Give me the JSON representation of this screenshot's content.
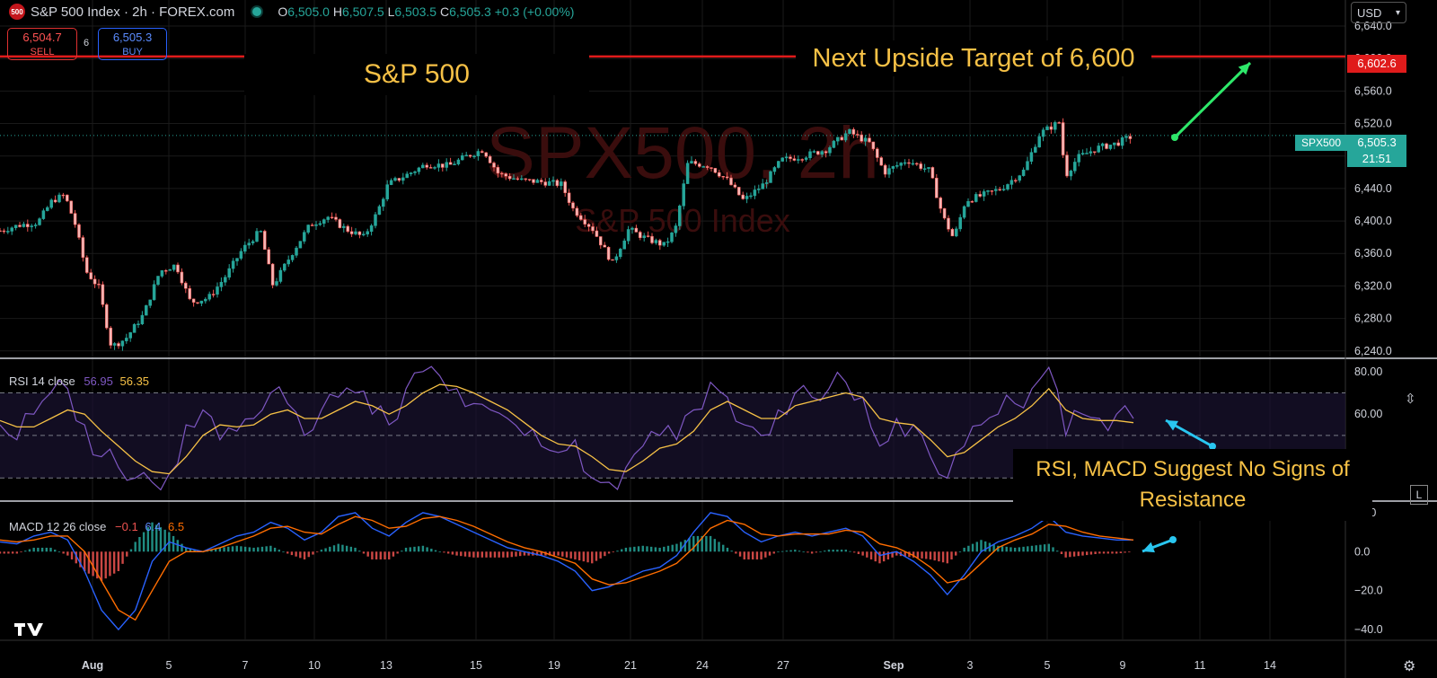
{
  "header": {
    "logo_text": "500",
    "title": "S&P 500 Index · 2h · FOREX.com",
    "ohlc": {
      "o_label": "O",
      "o": "6,505.0",
      "h_label": "H",
      "h": "6,507.5",
      "l_label": "L",
      "l": "6,503.5",
      "c_label": "C",
      "c": "6,505.3",
      "change": "+0.3 (+0.00%)"
    }
  },
  "trade": {
    "sell_price": "6,504.7",
    "sell_label": "SELL",
    "spread": "6",
    "buy_price": "6,505.3",
    "buy_label": "BUY"
  },
  "currency": "USD",
  "watermark": {
    "symbol": "SPX500, 2h",
    "name": "S&P 500 Index"
  },
  "annotations": {
    "title": "S&P 500",
    "target": "Next Upside Target of 6,600",
    "rsi_macd": "RSI, MACD Suggest No Signs of Resistance"
  },
  "price_labels": {
    "target_value": "6,602.6",
    "symbol": "SPX500",
    "last_price": "6,505.3",
    "countdown": "21:51"
  },
  "rsi_legend": {
    "label": "RSI 14 close",
    "rsi": "56.95",
    "ma": "56.35"
  },
  "macd_legend": {
    "label": "MACD 12 26 close",
    "hist": "−0.1",
    "macd": "6.4",
    "signal": "6.5"
  },
  "colors": {
    "up": "#26a69a",
    "down": "#ef5350",
    "rsi": "#7e57c2",
    "rsi_ma": "#f6c146",
    "macd": "#2962ff",
    "signal": "#ff6d00",
    "target_line": "#e01b1b",
    "annotation": "#f6c146"
  },
  "chart_data": [
    {
      "type": "candlestick",
      "title": "S&P 500 Index · 2h · FOREX.com",
      "x_ticks": [
        "Aug",
        "5",
        "7",
        "10",
        "13",
        "15",
        "19",
        "21",
        "24",
        "27",
        "Sep",
        "3",
        "5",
        "9",
        "11",
        "14"
      ],
      "y_ticks": [
        "6,640.0",
        "6,600.0",
        "6,560.0",
        "6,520.0",
        "6,480.0",
        "6,440.0",
        "6,400.0",
        "6,360.0",
        "6,320.0",
        "6,280.0",
        "6,240.0"
      ],
      "ylim": [
        6232,
        6650
      ],
      "close_path": [
        {
          "t": 0,
          "v": 6388
        },
        {
          "t": 22,
          "v": 6395
        },
        {
          "t": 42,
          "v": 6398
        },
        {
          "t": 58,
          "v": 6425
        },
        {
          "t": 72,
          "v": 6432
        },
        {
          "t": 84,
          "v": 6395
        },
        {
          "t": 96,
          "v": 6338
        },
        {
          "t": 110,
          "v": 6318
        },
        {
          "t": 124,
          "v": 6245
        },
        {
          "t": 140,
          "v": 6255
        },
        {
          "t": 160,
          "v": 6285
        },
        {
          "t": 178,
          "v": 6338
        },
        {
          "t": 196,
          "v": 6346
        },
        {
          "t": 212,
          "v": 6300
        },
        {
          "t": 232,
          "v": 6305
        },
        {
          "t": 250,
          "v": 6330
        },
        {
          "t": 270,
          "v": 6365
        },
        {
          "t": 290,
          "v": 6388
        },
        {
          "t": 304,
          "v": 6320
        },
        {
          "t": 325,
          "v": 6360
        },
        {
          "t": 345,
          "v": 6395
        },
        {
          "t": 365,
          "v": 6405
        },
        {
          "t": 385,
          "v": 6390
        },
        {
          "t": 405,
          "v": 6380
        },
        {
          "t": 420,
          "v": 6410
        },
        {
          "t": 432,
          "v": 6445
        },
        {
          "t": 455,
          "v": 6458
        },
        {
          "t": 475,
          "v": 6470
        },
        {
          "t": 500,
          "v": 6468
        },
        {
          "t": 520,
          "v": 6480
        },
        {
          "t": 538,
          "v": 6488
        },
        {
          "t": 555,
          "v": 6458
        },
        {
          "t": 580,
          "v": 6450
        },
        {
          "t": 605,
          "v": 6448
        },
        {
          "t": 625,
          "v": 6445
        },
        {
          "t": 638,
          "v": 6415
        },
        {
          "t": 660,
          "v": 6390
        },
        {
          "t": 682,
          "v": 6348
        },
        {
          "t": 700,
          "v": 6390
        },
        {
          "t": 720,
          "v": 6378
        },
        {
          "t": 740,
          "v": 6370
        },
        {
          "t": 752,
          "v": 6390
        },
        {
          "t": 766,
          "v": 6472
        },
        {
          "t": 790,
          "v": 6468
        },
        {
          "t": 810,
          "v": 6450
        },
        {
          "t": 828,
          "v": 6425
        },
        {
          "t": 850,
          "v": 6445
        },
        {
          "t": 870,
          "v": 6475
        },
        {
          "t": 895,
          "v": 6480
        },
        {
          "t": 920,
          "v": 6488
        },
        {
          "t": 945,
          "v": 6510
        },
        {
          "t": 968,
          "v": 6496
        },
        {
          "t": 985,
          "v": 6460
        },
        {
          "t": 1010,
          "v": 6475
        },
        {
          "t": 1035,
          "v": 6462
        },
        {
          "t": 1050,
          "v": 6405
        },
        {
          "t": 1062,
          "v": 6378
        },
        {
          "t": 1075,
          "v": 6425
        },
        {
          "t": 1095,
          "v": 6432
        },
        {
          "t": 1115,
          "v": 6440
        },
        {
          "t": 1140,
          "v": 6462
        },
        {
          "t": 1158,
          "v": 6508
        },
        {
          "t": 1180,
          "v": 6522
        },
        {
          "t": 1186,
          "v": 6455
        },
        {
          "t": 1200,
          "v": 6478
        },
        {
          "t": 1222,
          "v": 6490
        },
        {
          "t": 1242,
          "v": 6495
        },
        {
          "t": 1262,
          "v": 6505
        }
      ],
      "last_price": 6505.3,
      "target_level": 6602.6
    },
    {
      "type": "line",
      "title": "RSI 14 close",
      "y_ticks": [
        "80.00",
        "60.00",
        "00"
      ],
      "ylim": [
        20,
        85
      ],
      "bands": [
        70,
        50,
        30
      ],
      "series": [
        {
          "name": "RSI",
          "values": [
            55,
            48,
            60,
            70,
            72,
            55,
            40,
            35,
            30,
            28,
            32,
            55,
            62,
            48,
            52,
            58,
            70,
            65,
            50,
            62,
            68,
            70,
            60,
            55,
            72,
            80,
            78,
            72,
            65,
            62,
            58,
            50,
            45,
            42,
            48,
            30,
            28,
            35,
            45,
            50,
            48,
            62,
            75,
            68,
            55,
            50,
            62,
            70,
            68,
            72,
            75,
            68,
            45,
            58,
            55,
            40,
            30,
            45,
            55,
            60,
            65,
            72,
            82,
            50,
            60,
            58,
            60,
            58
          ]
        },
        {
          "name": "MA",
          "values": [
            57,
            54,
            54,
            58,
            62,
            60,
            52,
            45,
            38,
            33,
            32,
            40,
            50,
            55,
            54,
            55,
            60,
            62,
            58,
            58,
            62,
            66,
            64,
            60,
            64,
            70,
            74,
            73,
            70,
            66,
            62,
            56,
            50,
            46,
            45,
            40,
            34,
            33,
            38,
            44,
            46,
            52,
            62,
            66,
            62,
            58,
            58,
            64,
            66,
            68,
            70,
            68,
            58,
            56,
            55,
            48,
            40,
            42,
            48,
            54,
            58,
            64,
            72,
            62,
            58,
            57,
            57,
            56
          ]
        }
      ]
    },
    {
      "type": "bar",
      "title": "MACD 12 26 close",
      "y_ticks": [
        "20.0",
        "0.0",
        "−20.0",
        "−40.0"
      ],
      "ylim": [
        -45,
        25
      ],
      "series": [
        {
          "name": "MACD",
          "values": [
            5,
            4,
            8,
            10,
            6,
            -10,
            -30,
            -40,
            -30,
            -5,
            5,
            2,
            0,
            4,
            8,
            10,
            15,
            12,
            6,
            10,
            18,
            20,
            12,
            8,
            15,
            20,
            18,
            14,
            10,
            6,
            2,
            0,
            -2,
            -5,
            -10,
            -20,
            -18,
            -14,
            -10,
            -8,
            -2,
            10,
            20,
            18,
            10,
            5,
            8,
            10,
            8,
            10,
            12,
            8,
            -2,
            0,
            -5,
            -12,
            -22,
            -12,
            0,
            5,
            8,
            12,
            18,
            10,
            8,
            7,
            6,
            6
          ]
        },
        {
          "name": "Signal",
          "values": [
            6,
            5,
            6,
            8,
            8,
            0,
            -15,
            -30,
            -35,
            -20,
            -5,
            0,
            0,
            2,
            5,
            8,
            12,
            13,
            10,
            9,
            14,
            18,
            16,
            12,
            13,
            17,
            18,
            16,
            13,
            9,
            5,
            2,
            0,
            -3,
            -6,
            -14,
            -17,
            -16,
            -13,
            -10,
            -6,
            2,
            12,
            16,
            14,
            9,
            8,
            9,
            9,
            9,
            11,
            10,
            4,
            2,
            -2,
            -8,
            -16,
            -14,
            -6,
            2,
            6,
            9,
            14,
            13,
            10,
            8,
            7,
            6
          ]
        }
      ],
      "histogram": [
        -1,
        -1,
        2,
        2,
        -2,
        -10,
        -15,
        -10,
        5,
        15,
        10,
        2,
        0,
        2,
        3,
        2,
        3,
        -1,
        -4,
        1,
        4,
        2,
        -4,
        -4,
        2,
        3,
        0,
        -2,
        -3,
        -3,
        -3,
        -2,
        -2,
        -2,
        -4,
        -6,
        -1,
        2,
        3,
        2,
        4,
        8,
        8,
        2,
        -4,
        -4,
        0,
        1,
        -1,
        1,
        1,
        -2,
        -6,
        -2,
        -3,
        -4,
        -6,
        2,
        6,
        3,
        2,
        3,
        4,
        -3,
        -2,
        -1,
        -1,
        -0.1
      ]
    }
  ]
}
